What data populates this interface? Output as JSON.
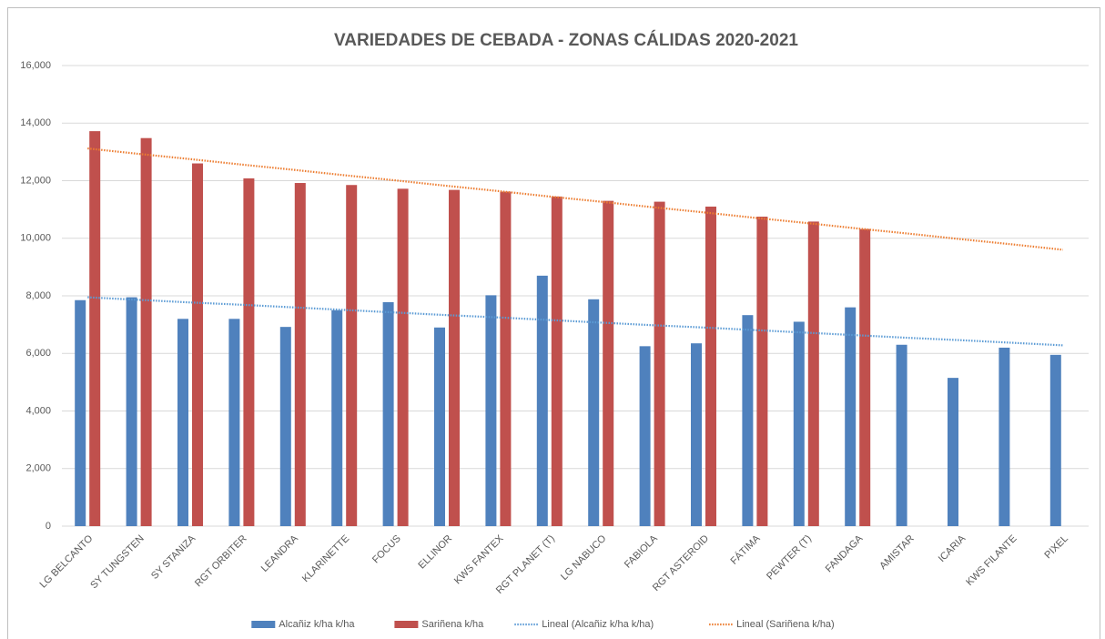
{
  "chart_data": {
    "type": "bar",
    "title": "VARIEDADES DE CEBADA - ZONAS CÁLIDAS 2020-2021",
    "categories": [
      "LG BELCANTO",
      "SY TUNGSTEN",
      "SY STANIZA",
      "RGT ORBITER",
      "LEANDRA",
      "KLARINETTE",
      "FOCUS",
      "ELLINOR",
      "KWS FANTEX",
      "RGT PLANET (T)",
      "LG NABUCO",
      "FABIOLA",
      "RGT ASTEROID",
      "FÁTIMA",
      "PEWTER (T)",
      "FANDAGA",
      "AMISTAR",
      "ICARIA",
      "KWS FILANTE",
      "PIXEL"
    ],
    "series": [
      {
        "name": "Alcañiz k/ha k/ha",
        "color": "#4f81bd",
        "values": [
          7850,
          7950,
          7200,
          7200,
          6920,
          7500,
          7780,
          6900,
          8020,
          8700,
          7880,
          6250,
          6350,
          7330,
          7100,
          7600,
          6300,
          5150,
          6200,
          5950
        ]
      },
      {
        "name": "Sariñena k/ha",
        "color": "#c0504d",
        "values": [
          13720,
          13480,
          12600,
          12080,
          11920,
          11850,
          11720,
          11680,
          11620,
          11450,
          11300,
          11270,
          11100,
          10750,
          10580,
          10320,
          null,
          null,
          null,
          null
        ]
      },
      {
        "name": "Lineal (Alcañiz k/ha k/ha)",
        "color": "#5b9bd5",
        "type": "line",
        "values": [
          7950,
          7860,
          7770,
          7690,
          7600,
          7510,
          7420,
          7330,
          7250,
          7160,
          7070,
          6980,
          6900,
          6810,
          6720,
          6630,
          6540,
          6460,
          6370,
          6280
        ]
      },
      {
        "name": "Lineal (Sariñena k/ha)",
        "color": "#ed7d31",
        "type": "line",
        "values": [
          13120,
          12930,
          12750,
          12560,
          12380,
          12190,
          12010,
          11820,
          11640,
          11450,
          11270,
          11080,
          10900,
          10710,
          10530,
          10340,
          10160,
          9970,
          9790,
          9600
        ]
      }
    ],
    "ylim": [
      0,
      16000
    ],
    "yticks": [
      0,
      {
        "value": 2000,
        "label": "2,000"
      },
      {
        "value": 4000,
        "label": "4,000"
      },
      {
        "value": 6000,
        "label": "6,000"
      },
      {
        "value": 8000,
        "label": "8,000"
      },
      {
        "value": 10000,
        "label": "10,000"
      },
      {
        "value": 12000,
        "label": "12,000"
      },
      {
        "value": 14000,
        "label": "14,000"
      },
      {
        "value": 16000,
        "label": "16,000"
      }
    ],
    "grid": true,
    "legend": "bottom"
  }
}
